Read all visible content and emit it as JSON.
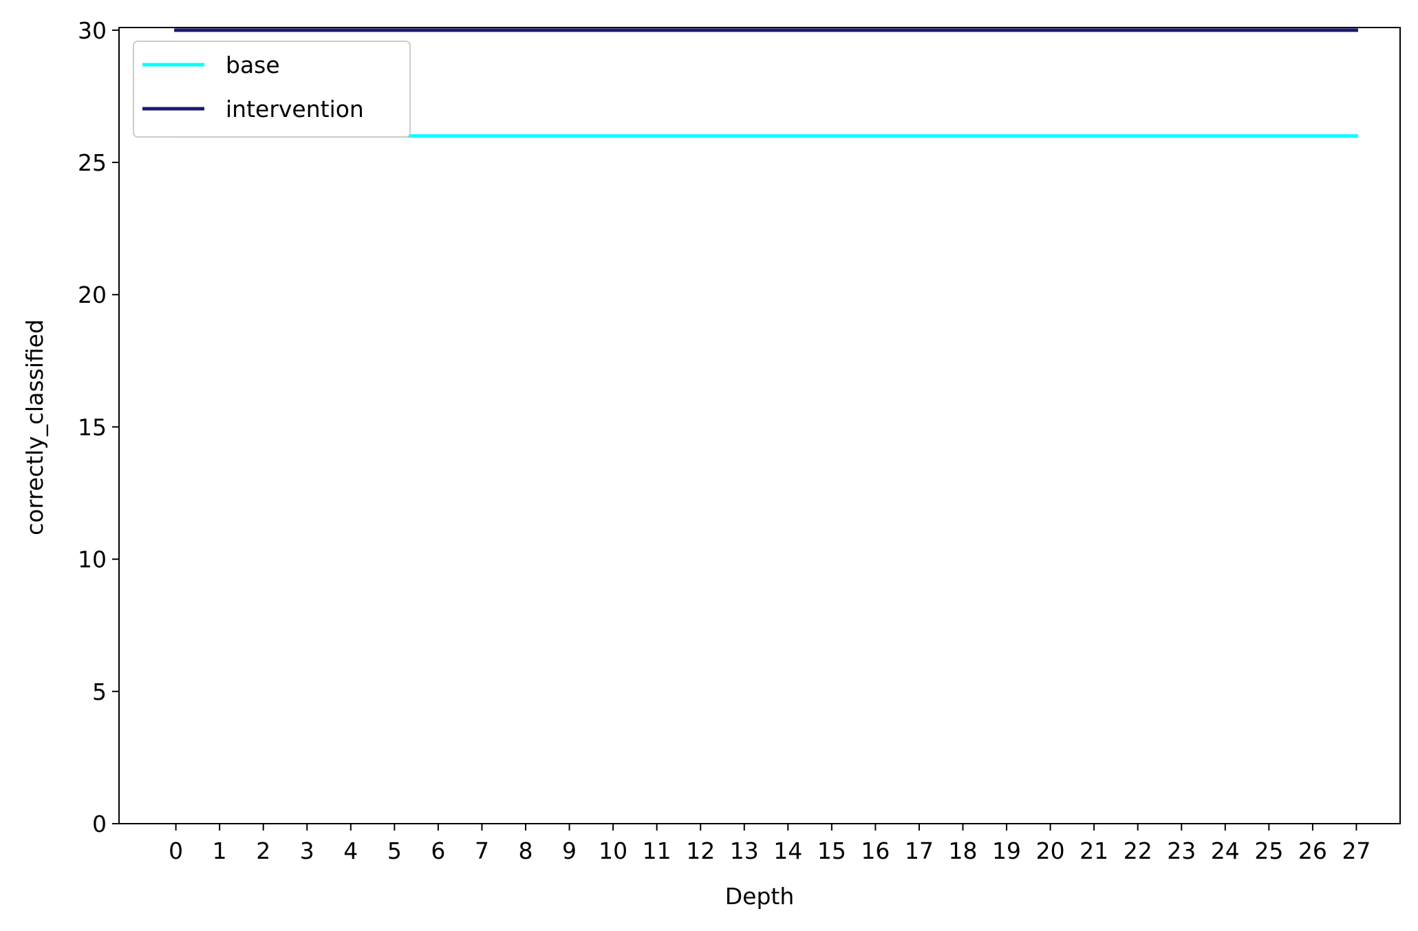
{
  "chart_data": {
    "type": "line",
    "xlabel": "Depth",
    "ylabel": "correctly_classified",
    "x": [
      0,
      1,
      2,
      3,
      4,
      5,
      6,
      7,
      8,
      9,
      10,
      11,
      12,
      13,
      14,
      15,
      16,
      17,
      18,
      19,
      20,
      21,
      22,
      23,
      24,
      25,
      26,
      27
    ],
    "x_tick_labels": [
      "0",
      "1",
      "2",
      "3",
      "4",
      "5",
      "6",
      "7",
      "8",
      "9",
      "10",
      "11",
      "12",
      "13",
      "14",
      "15",
      "16",
      "17",
      "18",
      "19",
      "20",
      "21",
      "22",
      "23",
      "24",
      "25",
      "26",
      "27"
    ],
    "y_ticks": [
      0,
      5,
      10,
      15,
      20,
      25,
      30
    ],
    "y_tick_labels": [
      "0",
      "5",
      "10",
      "15",
      "20",
      "25",
      "30"
    ],
    "xlim": [
      -1.3,
      28.0
    ],
    "ylim": [
      0,
      30.1
    ],
    "grid": false,
    "legend_position": "top-left",
    "series": [
      {
        "name": "base",
        "color": "#00ffff",
        "values": [
          26,
          26,
          26,
          26,
          26,
          26,
          26,
          26,
          26,
          26,
          26,
          26,
          26,
          26,
          26,
          26,
          26,
          26,
          26,
          26,
          26,
          26,
          26,
          26,
          26,
          26,
          26,
          26
        ]
      },
      {
        "name": "intervention",
        "color": "#191970",
        "values": [
          30,
          30,
          30,
          30,
          30,
          30,
          30,
          30,
          30,
          30,
          30,
          30,
          30,
          30,
          30,
          30,
          30,
          30,
          30,
          30,
          30,
          30,
          30,
          30,
          30,
          30,
          30,
          30
        ]
      }
    ]
  }
}
